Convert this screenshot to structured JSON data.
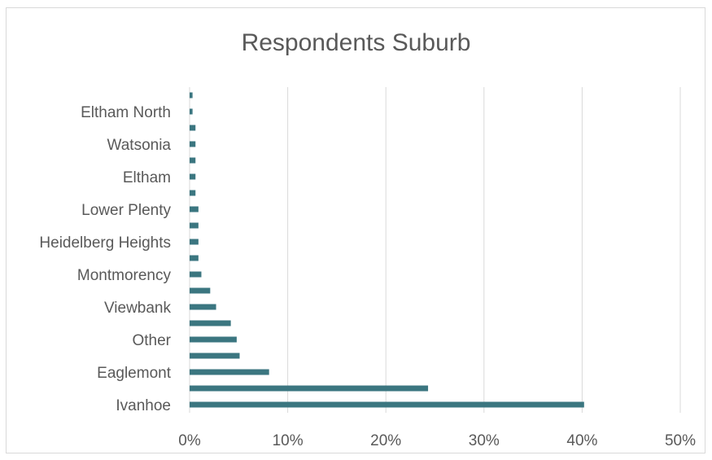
{
  "chart_data": {
    "type": "bar",
    "orientation": "horizontal",
    "title": "Respondents Suburb",
    "categories": [
      "Ivanhoe",
      "",
      "Eaglemont",
      "",
      "Other",
      "",
      "Viewbank",
      "",
      "Montmorency",
      "",
      "Heidelberg Heights",
      "",
      "Lower Plenty",
      "",
      "Eltham",
      "",
      "Watsonia",
      "",
      "Eltham North",
      ""
    ],
    "values": [
      40.2,
      24.3,
      8.1,
      5.1,
      4.8,
      4.2,
      2.7,
      2.1,
      1.2,
      0.9,
      0.9,
      0.9,
      0.9,
      0.6,
      0.6,
      0.6,
      0.6,
      0.6,
      0.3,
      0.3
    ],
    "xlim": [
      0,
      50
    ],
    "x_ticks": [
      "0%",
      "10%",
      "20%",
      "30%",
      "40%",
      "50%"
    ],
    "grid": true,
    "legend": "none",
    "bar_color": "#3b7680"
  }
}
